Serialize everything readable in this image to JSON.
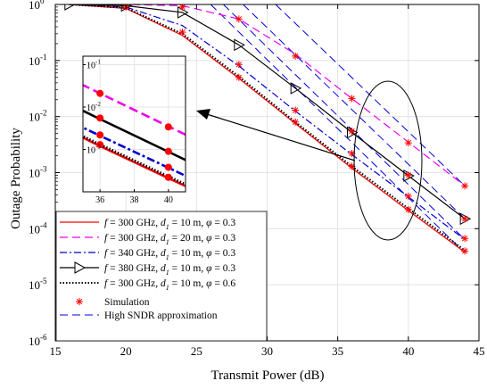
{
  "chart_data": {
    "type": "line",
    "xlabel": "Transmit Power  (dB)",
    "ylabel": "Outage Probability",
    "xlim": [
      15,
      45
    ],
    "ylim_log10": [
      -6,
      0
    ],
    "y_scale": "log",
    "grid": true,
    "legend_position": "bottom-left",
    "x_ticks": [
      "15",
      "20",
      "25",
      "30",
      "35",
      "40",
      "45"
    ],
    "y_ticks": [
      {
        "base": "10",
        "exp": "-6"
      },
      {
        "base": "10",
        "exp": "-5"
      },
      {
        "base": "10",
        "exp": "-4"
      },
      {
        "base": "10",
        "exp": "-3"
      },
      {
        "base": "10",
        "exp": "-2"
      },
      {
        "base": "10",
        "exp": "-1"
      },
      {
        "base": "10",
        "exp": "0"
      }
    ],
    "series": [
      {
        "id": "s1",
        "color": "#ff0000",
        "style": "solid",
        "marker": "none",
        "legend": {
          "f": "f",
          "fval": " = 300 GHz,  ",
          "d": "d",
          "dsub": "1",
          "dval": " = 10 m,   ",
          "phi": "φ",
          "phival": " = 0.3"
        },
        "x": [
          16,
          20,
          24,
          28,
          32,
          36,
          40,
          44
        ],
        "y": [
          1.0,
          0.85,
          0.28,
          0.048,
          0.0075,
          0.0012,
          0.00021,
          3.8e-05
        ]
      },
      {
        "id": "s2",
        "color": "#ee00ee",
        "style": "dashed",
        "marker": "none",
        "legend": {
          "f": "f",
          "fval": " = 300 GHz,  ",
          "d": "d",
          "dsub": "1",
          "dval": " = 20 m,   ",
          "phi": "φ",
          "phival": " = 0.3"
        },
        "x": [
          16,
          20,
          24,
          28,
          32,
          36,
          40,
          44
        ],
        "y": [
          1.0,
          1.0,
          0.95,
          0.55,
          0.13,
          0.021,
          0.0035,
          0.00058
        ]
      },
      {
        "id": "s3",
        "color": "#0000cc",
        "style": "dashdot",
        "marker": "none",
        "legend": {
          "f": "f",
          "fval": " = 340 GHz,  ",
          "d": "d",
          "dsub": "1",
          "dval": " = 10 m,   ",
          "phi": "φ",
          "phival": " = 0.3"
        },
        "x": [
          16,
          20,
          24,
          28,
          32,
          36,
          40,
          44
        ],
        "y": [
          1.0,
          0.9,
          0.42,
          0.08,
          0.0125,
          0.0021,
          0.00037,
          6.4e-05
        ]
      },
      {
        "id": "s4",
        "color": "#000000",
        "style": "solid",
        "marker": "triangle-right",
        "legend": {
          "f": "f",
          "fval": " = 380 GHz,  ",
          "d": "d",
          "dsub": "1",
          "dval": " = 10 m,   ",
          "phi": "φ",
          "phival": " = 0.3"
        },
        "x": [
          16,
          20,
          24,
          28,
          32,
          36,
          40,
          44
        ],
        "y": [
          1.0,
          0.95,
          0.72,
          0.19,
          0.032,
          0.0052,
          0.00088,
          0.00015
        ]
      },
      {
        "id": "s5",
        "color": "#000000",
        "style": "dotted",
        "marker": "none",
        "legend": {
          "f": "f",
          "fval": " = 300 GHz,  ",
          "d": "d",
          "dsub": "1",
          "dval": " = 10 m,   ",
          "phi": "φ",
          "phival": " = 0.6"
        },
        "x": [
          16,
          20,
          24,
          28,
          32,
          36,
          40,
          44
        ],
        "y": [
          1.0,
          0.87,
          0.3,
          0.052,
          0.008,
          0.0013,
          0.00023,
          4.1e-05
        ]
      }
    ],
    "simulation": {
      "legend": "Simulation",
      "color": "#ff0000",
      "points": [
        [
          20,
          0.9
        ],
        [
          24,
          0.32
        ],
        [
          24,
          0.9
        ],
        [
          28,
          0.05
        ],
        [
          28,
          0.085
        ],
        [
          28,
          0.55
        ],
        [
          32,
          0.008
        ],
        [
          32,
          0.013
        ],
        [
          32,
          0.12
        ],
        [
          36,
          0.0013
        ],
        [
          36,
          0.0022
        ],
        [
          36,
          0.0055
        ],
        [
          36,
          0.021
        ],
        [
          40,
          0.00022
        ],
        [
          40,
          0.00038
        ],
        [
          40,
          0.0009
        ],
        [
          40,
          0.0034
        ],
        [
          44,
          4e-05
        ],
        [
          44,
          6.7e-05
        ],
        [
          44,
          0.00015
        ],
        [
          44,
          0.00058
        ]
      ]
    },
    "approximation": {
      "legend": "High SNDR approximation",
      "color": "#0000dd",
      "lines": [
        {
          "x": [
            26,
            44
          ],
          "y": [
            1.0,
            3.7e-05
          ]
        },
        {
          "x": [
            26.9,
            44
          ],
          "y": [
            1.0,
            6.4e-05
          ]
        },
        {
          "x": [
            28.3,
            44
          ],
          "y": [
            1.0,
            0.00015
          ]
        },
        {
          "x": [
            30.6,
            44
          ],
          "y": [
            1.0,
            0.00058
          ]
        }
      ]
    },
    "inset": {
      "xlim": [
        35,
        41
      ],
      "ylim_log10": [
        -4,
        -0.8
      ],
      "x_ticks": [
        "36",
        "38",
        "40"
      ],
      "y_ticks": [
        {
          "base": "10",
          "exp": "-3"
        },
        {
          "base": "10",
          "exp": "-2"
        },
        {
          "base": "10",
          "exp": "-1"
        }
      ]
    }
  }
}
